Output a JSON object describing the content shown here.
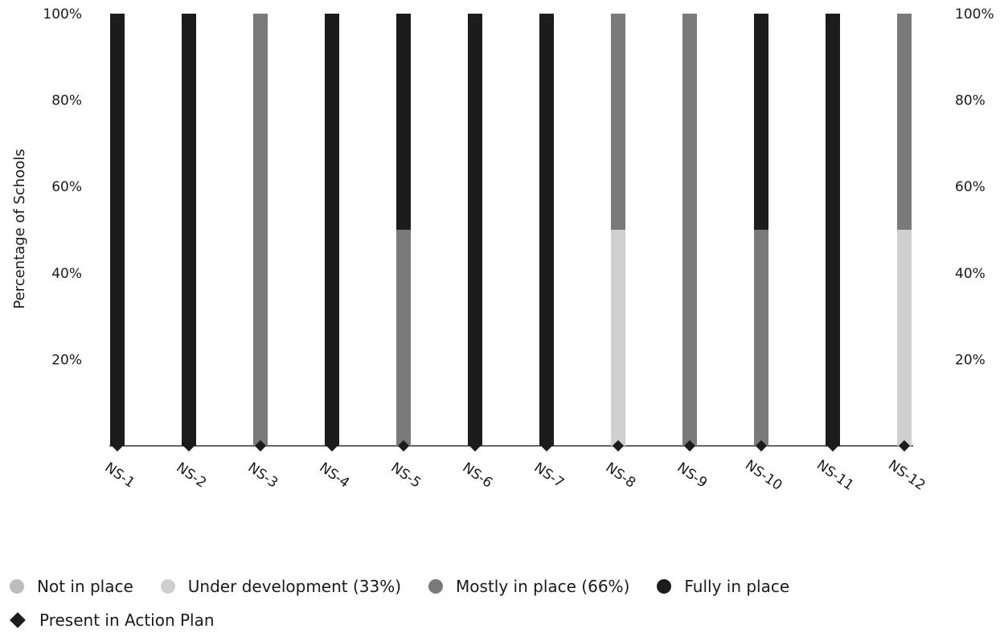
{
  "colors": {
    "not_in_place": "#bdbdbd",
    "under_development": "#cfcfcf",
    "mostly_in_place": "#7a7a7a",
    "fully_in_place": "#1c1c1c",
    "action_plan_marker": "#1c1c1c"
  },
  "chart_data": {
    "type": "bar",
    "stacked": true,
    "xlabel": "",
    "ylabel": "Percentage of Schools",
    "ylim": [
      0,
      100
    ],
    "y_ticks": [
      "20%",
      "40%",
      "60%",
      "80%",
      "100%"
    ],
    "y_ticks_right": [
      "20%",
      "40%",
      "60%",
      "80%",
      "100%"
    ],
    "categories": [
      "NS-1",
      "NS-2",
      "NS-3",
      "NS-4",
      "NS-5",
      "NS-6",
      "NS-7",
      "NS-8",
      "NS-9",
      "NS-10",
      "NS-11",
      "NS-12"
    ],
    "series": [
      {
        "name": "Not in place",
        "values": [
          0,
          0,
          0,
          0,
          0,
          0,
          0,
          0,
          0,
          0,
          0,
          0
        ]
      },
      {
        "name": "Under development (33%)",
        "values": [
          0,
          0,
          0,
          0,
          0,
          0,
          0,
          50,
          0,
          0,
          0,
          50
        ]
      },
      {
        "name": "Mostly in place (66%)",
        "values": [
          0,
          0,
          100,
          0,
          50,
          0,
          0,
          50,
          100,
          50,
          0,
          50
        ]
      },
      {
        "name": "Fully in place",
        "values": [
          100,
          100,
          0,
          100,
          50,
          100,
          100,
          0,
          0,
          50,
          100,
          0
        ]
      }
    ],
    "markers": {
      "name": "Present in Action Plan",
      "values": [
        0,
        0,
        0,
        0,
        0,
        0,
        0,
        0,
        0,
        0,
        0,
        0
      ]
    },
    "grid": false,
    "legend_position": "bottom"
  },
  "legend": {
    "row1": [
      "Not in place",
      "Under development (33%)",
      "Mostly in place (66%)",
      "Fully in place"
    ],
    "row2": "Present in Action Plan"
  }
}
